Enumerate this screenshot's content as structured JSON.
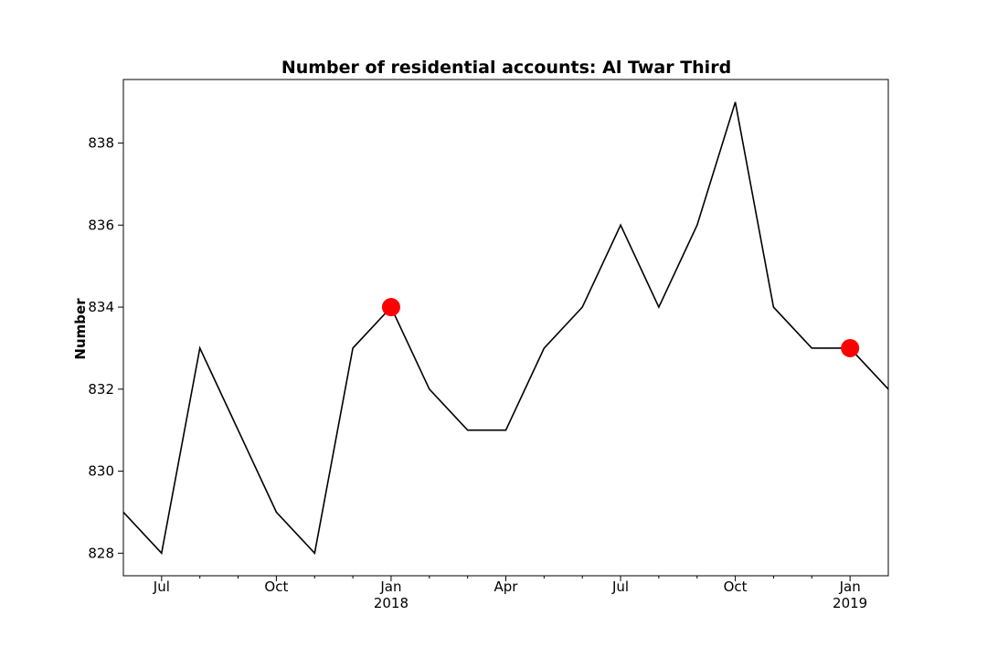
{
  "chart_data": {
    "type": "line",
    "title": "Number of residential accounts: Al Twar Third",
    "xlabel": "",
    "ylabel": "Number",
    "x": [
      "2017-06",
      "2017-07",
      "2017-08",
      "2017-09",
      "2017-10",
      "2017-11",
      "2017-12",
      "2018-01",
      "2018-02",
      "2018-03",
      "2018-04",
      "2018-05",
      "2018-06",
      "2018-07",
      "2018-08",
      "2018-09",
      "2018-10",
      "2018-11",
      "2018-12",
      "2019-01",
      "2019-02"
    ],
    "series": [
      {
        "values": [
          829,
          828,
          833,
          831,
          829,
          828,
          833,
          834,
          832,
          831,
          831,
          833,
          834,
          836,
          834,
          836,
          839,
          834,
          833,
          833,
          832
        ],
        "color": "#000000"
      }
    ],
    "highlight_points": [
      {
        "x": "2018-01",
        "y": 834,
        "color": "#ff0000"
      },
      {
        "x": "2019-01",
        "y": 833,
        "color": "#ff0000"
      }
    ],
    "ylim": [
      827.45,
      839.55
    ],
    "yticks": [
      828,
      830,
      832,
      834,
      836,
      838
    ],
    "xticks_major": [
      {
        "x": "2017-07",
        "label": "Jul",
        "sublabel": ""
      },
      {
        "x": "2017-10",
        "label": "Oct",
        "sublabel": ""
      },
      {
        "x": "2018-01",
        "label": "Jan",
        "sublabel": "2018"
      },
      {
        "x": "2018-04",
        "label": "Apr",
        "sublabel": ""
      },
      {
        "x": "2018-07",
        "label": "Jul",
        "sublabel": ""
      },
      {
        "x": "2018-10",
        "label": "Oct",
        "sublabel": ""
      },
      {
        "x": "2019-01",
        "label": "Jan",
        "sublabel": "2019"
      }
    ],
    "grid": false,
    "legend": "none"
  }
}
